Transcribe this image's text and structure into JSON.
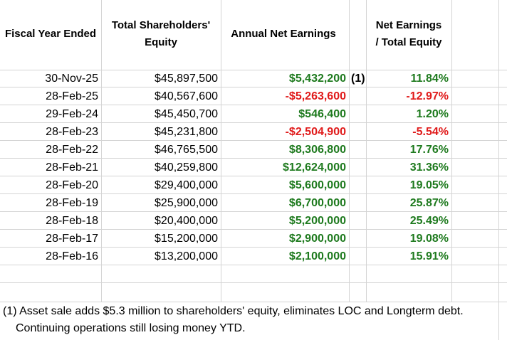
{
  "headers": {
    "fiscal_year_ended": "Fiscal Year Ended",
    "total_equity_line1": "Total Shareholders'",
    "total_equity_line2": "Equity",
    "annual_net_earnings": "Annual Net Earnings",
    "ratio_line1": "Net Earnings",
    "ratio_line2": "/ Total Equity"
  },
  "rows": [
    {
      "date": "30-Nov-25",
      "equity": "$45,897,500",
      "earnings": "$5,432,200",
      "flag": "(1)",
      "ratio": "11.84%",
      "sign": "pos"
    },
    {
      "date": "28-Feb-25",
      "equity": "$40,567,600",
      "earnings": "-$5,263,600",
      "flag": "",
      "ratio": "-12.97%",
      "sign": "neg"
    },
    {
      "date": "29-Feb-24",
      "equity": "$45,450,700",
      "earnings": "$546,400",
      "flag": "",
      "ratio": "1.20%",
      "sign": "pos"
    },
    {
      "date": "28-Feb-23",
      "equity": "$45,231,800",
      "earnings": "-$2,504,900",
      "flag": "",
      "ratio": "-5.54%",
      "sign": "neg"
    },
    {
      "date": "28-Feb-22",
      "equity": "$46,765,500",
      "earnings": "$8,306,800",
      "flag": "",
      "ratio": "17.76%",
      "sign": "pos"
    },
    {
      "date": "28-Feb-21",
      "equity": "$40,259,800",
      "earnings": "$12,624,000",
      "flag": "",
      "ratio": "31.36%",
      "sign": "pos"
    },
    {
      "date": "28-Feb-20",
      "equity": "$29,400,000",
      "earnings": "$5,600,000",
      "flag": "",
      "ratio": "19.05%",
      "sign": "pos"
    },
    {
      "date": "28-Feb-19",
      "equity": "$25,900,000",
      "earnings": "$6,700,000",
      "flag": "",
      "ratio": "25.87%",
      "sign": "pos"
    },
    {
      "date": "28-Feb-18",
      "equity": "$20,400,000",
      "earnings": "$5,200,000",
      "flag": "",
      "ratio": "25.49%",
      "sign": "pos"
    },
    {
      "date": "28-Feb-17",
      "equity": "$15,200,000",
      "earnings": "$2,900,000",
      "flag": "",
      "ratio": "19.08%",
      "sign": "pos"
    },
    {
      "date": "28-Feb-16",
      "equity": "$13,200,000",
      "earnings": "$2,100,000",
      "flag": "",
      "ratio": "15.91%",
      "sign": "pos"
    }
  ],
  "footnote": {
    "line1": "(1) Asset sale adds $5.3 million to shareholders' equity, eliminates LOC and Longterm debt.",
    "line2": "Continuing operations still losing money YTD."
  },
  "colors": {
    "positive": "#1e7a1e",
    "negative": "#e01a1a"
  }
}
